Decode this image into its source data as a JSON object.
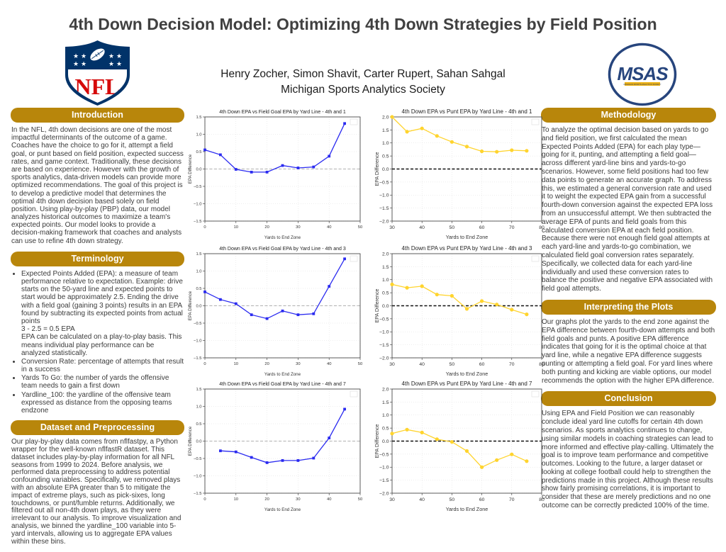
{
  "poster": {
    "title": "4th Down Decision Model: Optimizing 4th Down Strategies by Field Position",
    "authors": "Henry Zocher, Simon Shavit, Carter Rupert, Sahan Sahgal",
    "affiliation": "Michigan Sports Analytics Society"
  },
  "logos": {
    "nfl_label": "NFL",
    "msas_label": "MSAS",
    "msas_sub": "MICHIGAN SPORTS ANALYTICS SOCIETY"
  },
  "colors": {
    "header_gold": "#B8860B",
    "field_goal_blue": "#2b2bf0",
    "punt_gold": "#FFD42E",
    "nfl_navy": "#013369",
    "nfl_red": "#D50A0A",
    "msas_navy": "#27457d"
  },
  "sections": {
    "introduction": {
      "title": "Introduction",
      "body": "In the NFL, 4th down decisions are one of the most impactful determinants of the outcome of a game. Coaches have the choice to go for it, attempt a field goal, or punt based on field position, expected success rates, and game context. Traditionally, these decisions are based on experience. However with the growth of sports analytics, data-driven models can provide more optimized recommendations. The goal of this project is to develop a predictive model that determines the optimal 4th down decision based solely on field position. Using play-by-play (PBP) data, our model analyzes historical outcomes to maximize a team's expected points. Our model looks to provide a decision-making framework that coaches and analysts can use to refine 4th down strategy."
    },
    "terminology": {
      "title": "Terminology",
      "bullets": [
        "Expected Points Added (EPA): a measure of team performance relative to expectation. Example: drive starts on the 50-yard line and expected points to start would be approximately 2.5. Ending the drive with a field goal (gaining 3 points) results in an EPA found by subtracting its expected points from actual points\n3 - 2.5 = 0.5 EPA\nEPA can be calculated on a play-to-play basis. This means individual play performance can be analyzed statistically.",
        "Conversion Rate: percentage of attempts that result in a success",
        "Yards To Go: the number of yards the offensive team needs to gain a first down",
        "Yardline_100: the yardline of the offensive team expressed as distance from the opposing teams endzone"
      ]
    },
    "dataset": {
      "title": "Dataset and Preprocessing",
      "body": "Our play-by-play data comes from nflfastpy, a Python wrapper for the well-known nflfastR dataset. This dataset includes play-by-play information for all NFL seasons from 1999 to 2024. Before analysis, we performed data preprocessing to address potential confounding variables. Specifically, we removed plays with an absolute EPA greater than 5 to mitigate the impact of extreme plays, such as pick-sixes, long touchdowns, or punt/fumble returns. Additionally, we filtered out all non-4th down plays, as they were irrelevant to our analysis. To improve visualization and analysis, we binned the yardline_100 variable into 5-yard intervals, allowing us to aggregate EPA values within these bins."
    },
    "methodology": {
      "title": "Methodology",
      "body": "To analyze the optimal decision based on yards to go and field position, we first calculated the mean Expected Points Added (EPA) for each play type—going for it, punting, and attempting a field goal—across different yard-line bins and yards-to-go scenarios. However, some field positions had too few data points to generate an accurate graph. To address this, we estimated a general conversion rate and used it to weight the expected EPA gain from a successful fourth-down conversion against the expected EPA loss from an unsuccessful attempt. We then subtracted the average EPA of punts and field goals from this calculated conversion EPA at each field position. Because there were not enough field goal attempts at each yard-line and yards-to-go combination, we calculated field goal conversion rates separately. Specifically, we collected data for each yard-line individually and used these conversion rates to balance the positive and negative EPA associated with field goal attempts."
    },
    "interpreting": {
      "title": "Interpreting the Plots",
      "body": "Our graphs plot the yards to the end zone against the EPA difference between fourth-down attempts and both field goals and punts. A positive EPA difference indicates that going for it is the optimal choice at that yard line, while a negative EPA difference suggests punting or attempting a field goal. For yard lines where both punting and kicking are viable options, our model recommends the option with the higher EPA difference."
    },
    "conclusion": {
      "title": "Conclusion",
      "body": "Using EPA and Field Position we can reasonably conclude ideal yard line cutoffs for certain 4th down scenarios.  As sports analytics continues to change, using similar models in coaching strategies can lead to more informed and effective play-calling. Ultimately the goal is to improve team performance and competitive outcomes. Looking to the future, a larger dataset or looking at college football could help to strengthen the predictions made in this project. Although these results show fairly promising correlations, it is important to consider that these are merely predictions and no one outcome can be correctly predicted 100% of the time."
    }
  },
  "chart_data": [
    {
      "type": "line",
      "title": "4th Down EPA vs Field Goal EPA by Yard Line - 4th and 1",
      "xlabel": "Yards to End Zone",
      "ylabel": "EPA Difference",
      "x": [
        0,
        5,
        10,
        15,
        20,
        25,
        30,
        35,
        40,
        45
      ],
      "y": [
        0.55,
        0.41,
        -0.01,
        -0.09,
        -0.09,
        0.1,
        0.03,
        0.06,
        0.37,
        1.31
      ],
      "xlim": [
        0,
        50
      ],
      "ylim": [
        -1.5,
        1.5
      ],
      "xticks": [
        0,
        10,
        20,
        30,
        40,
        50
      ],
      "yticks": [
        -1.5,
        -1.0,
        -0.5,
        0.0,
        0.5,
        1.0,
        1.5
      ],
      "color": "#2b2bf0",
      "marker": "square",
      "grid": true,
      "legend_box": true,
      "zero_line": true,
      "zero_color": "#999999",
      "zero_width": 0.8,
      "left_margin": 26,
      "base_font": 5.8
    },
    {
      "type": "line",
      "title": "4th Down EPA vs Punt EPA by Yard Line - 4th and 1",
      "xlabel": "Yards to End Zone",
      "ylabel": "EPA Difference",
      "x": [
        30,
        35,
        40,
        45,
        50,
        55,
        60,
        65,
        70,
        75
      ],
      "y": [
        2.0,
        1.43,
        1.56,
        1.27,
        1.04,
        0.86,
        0.68,
        0.66,
        0.72,
        0.7
      ],
      "xlim": [
        30,
        80
      ],
      "ylim": [
        -2.0,
        2.0
      ],
      "xticks": [
        30,
        40,
        50,
        60,
        70,
        80
      ],
      "yticks": [
        -2.0,
        -1.5,
        -1.0,
        -0.5,
        0.0,
        0.5,
        1.0,
        1.5,
        2.0
      ],
      "color": "#FFD42E",
      "marker": "circle",
      "grid": true,
      "legend_box": true,
      "zero_line": true,
      "zero_color": "#111111",
      "zero_width": 1.6,
      "left_margin": 34,
      "base_font": 6.8
    },
    {
      "type": "line",
      "title": "4th Down EPA vs Field Goal EPA by Yard Line - 4th and 3",
      "xlabel": "Yards to End Zone",
      "ylabel": "EPA Difference",
      "x": [
        0,
        5,
        10,
        15,
        20,
        25,
        30,
        35,
        40,
        45
      ],
      "y": [
        0.4,
        0.18,
        0.06,
        -0.26,
        -0.37,
        -0.15,
        -0.26,
        -0.23,
        0.56,
        1.35
      ],
      "xlim": [
        0,
        50
      ],
      "ylim": [
        -1.5,
        1.5
      ],
      "xticks": [
        0,
        10,
        20,
        30,
        40,
        50
      ],
      "yticks": [
        -1.5,
        -1.0,
        -0.5,
        0.0,
        0.5,
        1.0,
        1.5
      ],
      "color": "#2b2bf0",
      "marker": "square",
      "grid": true,
      "legend_box": true,
      "zero_line": true,
      "zero_color": "#999999",
      "zero_width": 0.8,
      "left_margin": 26,
      "base_font": 5.8
    },
    {
      "type": "line",
      "title": "4th Down EPA vs Punt EPA by Yard Line - 4th and 3",
      "xlabel": "Yards to End Zone",
      "ylabel": "EPA Difference",
      "x": [
        30,
        35,
        40,
        45,
        50,
        55,
        60,
        65,
        70,
        75
      ],
      "y": [
        0.82,
        0.69,
        0.75,
        0.43,
        0.38,
        -0.12,
        0.18,
        0.05,
        -0.15,
        -0.33
      ],
      "xlim": [
        30,
        80
      ],
      "ylim": [
        -2.0,
        2.0
      ],
      "xticks": [
        30,
        40,
        50,
        60,
        70,
        80
      ],
      "yticks": [
        -2.0,
        -1.5,
        -1.0,
        -0.5,
        0.0,
        0.5,
        1.0,
        1.5,
        2.0
      ],
      "color": "#FFD42E",
      "marker": "circle",
      "grid": true,
      "legend_box": true,
      "zero_line": true,
      "zero_color": "#111111",
      "zero_width": 1.6,
      "left_margin": 34,
      "base_font": 6.8
    },
    {
      "type": "line",
      "title": "4th Down EPA vs Field Goal EPA by Yard Line - 4th and 7",
      "xlabel": "Yards to End Zone",
      "ylabel": "EPA Difference",
      "x": [
        5,
        10,
        15,
        20,
        25,
        30,
        35,
        40,
        45
      ],
      "y": [
        -0.28,
        -0.31,
        -0.47,
        -0.62,
        -0.56,
        -0.56,
        -0.49,
        0.09,
        0.92
      ],
      "xlim": [
        0,
        50
      ],
      "ylim": [
        -1.5,
        1.5
      ],
      "xticks": [
        0,
        10,
        20,
        30,
        40,
        50
      ],
      "yticks": [
        -1.5,
        -1.0,
        -0.5,
        0.0,
        0.5,
        1.0,
        1.5
      ],
      "color": "#2b2bf0",
      "marker": "square",
      "grid": true,
      "legend_box": true,
      "zero_line": true,
      "zero_color": "#999999",
      "zero_width": 0.8,
      "left_margin": 26,
      "base_font": 5.8
    },
    {
      "type": "line",
      "title": "4th Down EPA vs Punt EPA by Yard Line - 4th and 7",
      "xlabel": "Yards to End Zone",
      "ylabel": "EPA Difference",
      "x": [
        30,
        35,
        40,
        45,
        50,
        55,
        60,
        65,
        70,
        75
      ],
      "y": [
        0.29,
        0.44,
        0.33,
        0.07,
        -0.03,
        -0.38,
        -1.0,
        -0.73,
        -0.51,
        -0.77
      ],
      "xlim": [
        30,
        80
      ],
      "ylim": [
        -2.0,
        2.0
      ],
      "xticks": [
        30,
        40,
        50,
        60,
        70,
        80
      ],
      "yticks": [
        -2.0,
        -1.5,
        -1.0,
        -0.5,
        0.0,
        0.5,
        1.0,
        1.5,
        2.0
      ],
      "color": "#FFD42E",
      "marker": "circle",
      "grid": true,
      "legend_box": true,
      "zero_line": true,
      "zero_color": "#111111",
      "zero_width": 1.6,
      "left_margin": 34,
      "base_font": 6.8
    }
  ]
}
